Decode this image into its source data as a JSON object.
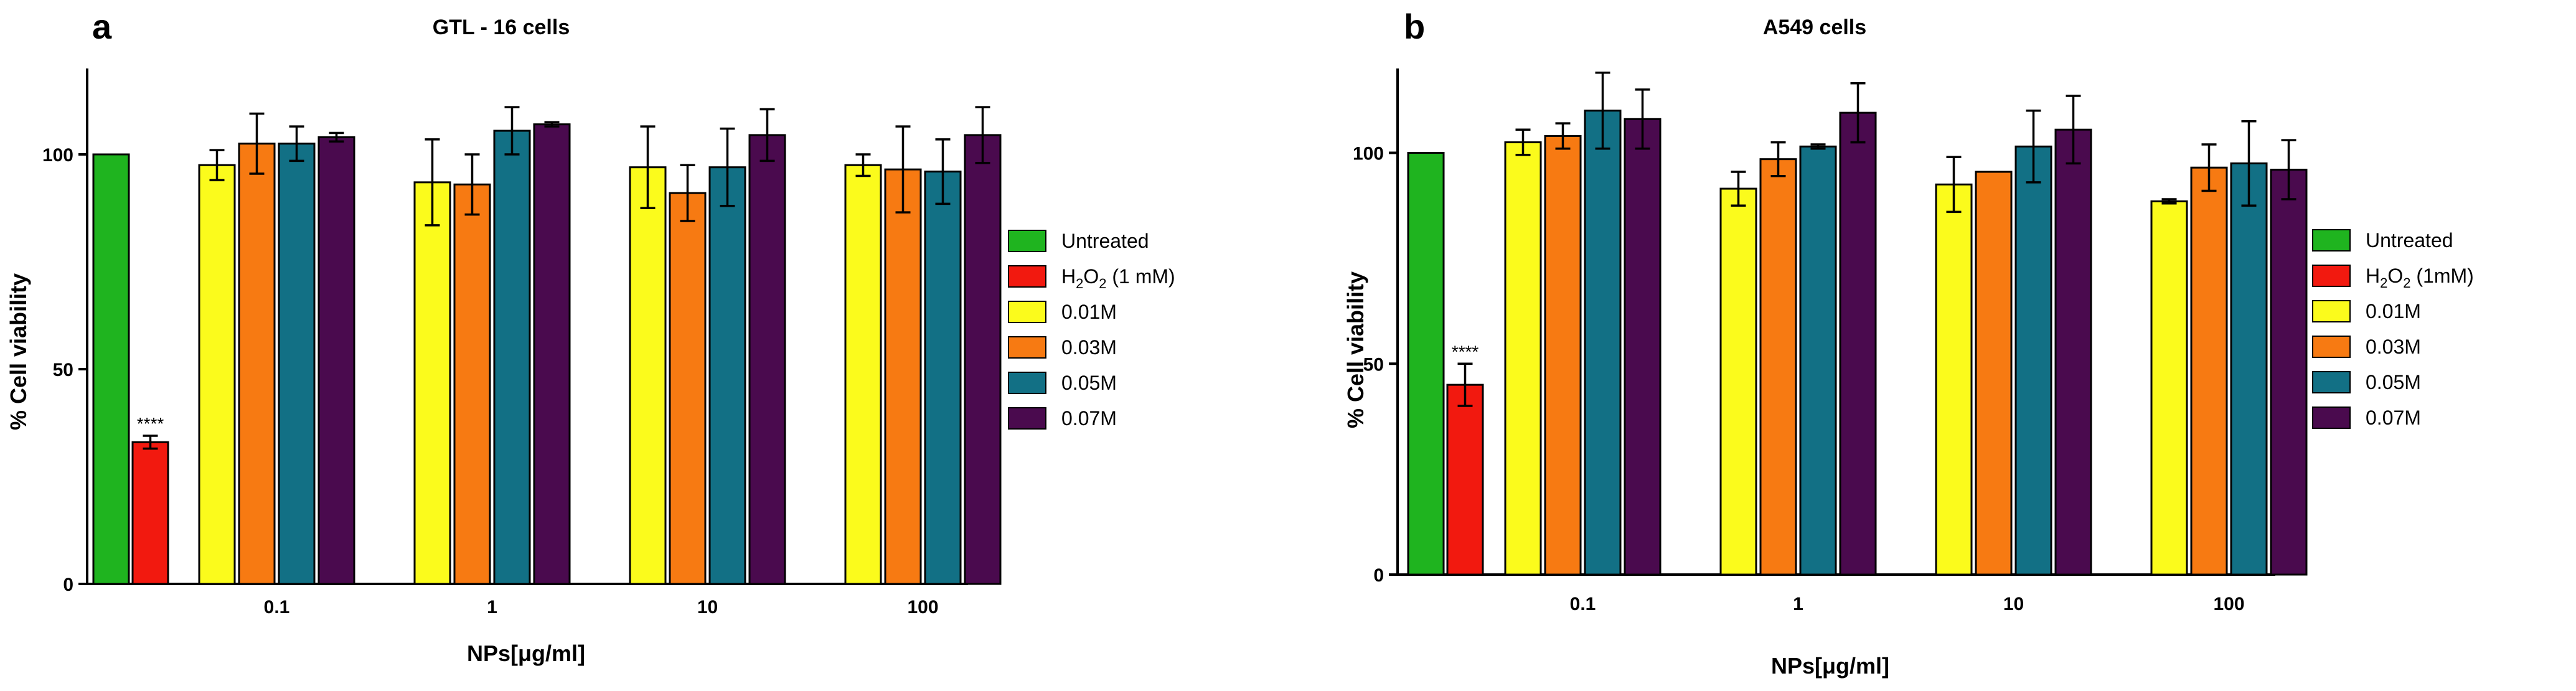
{
  "chart_data": [
    {
      "panel": "a",
      "type": "bar",
      "title": "GTL - 16 cells",
      "xlabel": "NPs[μg/ml]",
      "ylabel": "% Cell viability",
      "ylim": [
        0,
        120
      ],
      "yticks": [
        0,
        50,
        100
      ],
      "controls": [
        {
          "name": "Untreated",
          "value": 100,
          "error": 0
        },
        {
          "name": "H2O2 (1 mM)",
          "value": 33,
          "error": 1.5,
          "significance": "****"
        }
      ],
      "categories": [
        "0.1",
        "1",
        "10",
        "100"
      ],
      "series": [
        {
          "name": "0.01M",
          "values": [
            97.5,
            93.5,
            97,
            97.5
          ],
          "errors": [
            3.5,
            10,
            9.5,
            2.5
          ]
        },
        {
          "name": "0.03M",
          "values": [
            102.5,
            93,
            91,
            96.5
          ],
          "errors": [
            7,
            7,
            6.5,
            10
          ]
        },
        {
          "name": "0.05M",
          "values": [
            102.5,
            105.5,
            97,
            96
          ],
          "errors": [
            4,
            5.5,
            9,
            7.5
          ]
        },
        {
          "name": "0.07M",
          "values": [
            104,
            107,
            104.5,
            104.5
          ],
          "errors": [
            1,
            0.5,
            6,
            6.5
          ]
        }
      ],
      "legend_position": "right"
    },
    {
      "panel": "b",
      "type": "bar",
      "title": "A549 cells",
      "xlabel": "NPs[μg/ml]",
      "ylabel": "% Cell viability",
      "ylim": [
        0,
        120
      ],
      "yticks": [
        0,
        50,
        100
      ],
      "controls": [
        {
          "name": "Untreated",
          "value": 100,
          "error": 0
        },
        {
          "name": "H2O2 (1mM)",
          "value": 45,
          "error": 5,
          "significance": "****"
        }
      ],
      "categories": [
        "0.1",
        "1",
        "10",
        "100"
      ],
      "series": [
        {
          "name": "0.01M",
          "values": [
            102.5,
            91.5,
            92.5,
            88.5
          ],
          "errors": [
            3,
            4,
            6.5,
            0.5
          ]
        },
        {
          "name": "0.03M",
          "values": [
            104,
            98.5,
            95.5,
            96.5
          ],
          "errors": [
            3,
            4,
            0,
            5.5
          ]
        },
        {
          "name": "0.05M",
          "values": [
            110,
            101.5,
            101.5,
            97.5
          ],
          "errors": [
            9,
            0.5,
            8.5,
            10
          ]
        },
        {
          "name": "0.07M",
          "values": [
            108,
            109.5,
            105.5,
            96
          ],
          "errors": [
            7,
            7,
            8,
            7
          ]
        }
      ],
      "legend_position": "right"
    }
  ],
  "colors": {
    "Untreated": "#1fb41f",
    "H2O2": "#f2190f",
    "0.01M": "#fbfb1c",
    "0.03M": "#f77a12",
    "0.05M": "#127085",
    "0.07M": "#4a0a4e"
  },
  "legend": {
    "a": [
      "Untreated",
      "H2O2 (1 mM)",
      "0.01M",
      "0.03M",
      "0.05M",
      "0.07M"
    ],
    "b": [
      "Untreated",
      "H2O2 (1mM)",
      "0.01M",
      "0.03M",
      "0.05M",
      "0.07M"
    ]
  }
}
